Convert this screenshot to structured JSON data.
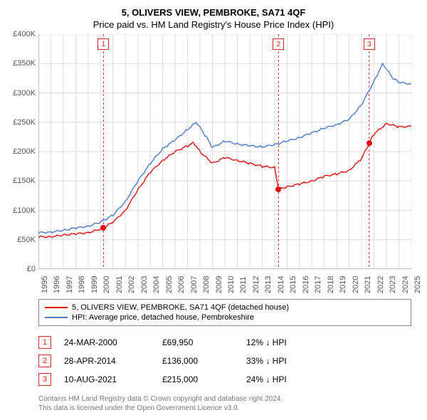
{
  "title": "5, OLIVERS VIEW, PEMBROKE, SA71 4QF",
  "subtitle": "Price paid vs. HM Land Registry's House Price Index (HPI)",
  "chart": {
    "type": "line",
    "x_start_year": 1995,
    "x_end_year": 2025,
    "xticks": [
      1995,
      1996,
      1997,
      1998,
      1999,
      2000,
      2001,
      2002,
      2003,
      2004,
      2005,
      2006,
      2007,
      2008,
      2009,
      2010,
      2011,
      2012,
      2013,
      2014,
      2015,
      2016,
      2017,
      2018,
      2019,
      2020,
      2021,
      2022,
      2023,
      2024,
      2025
    ],
    "y_min": 0,
    "y_max": 400000,
    "ytick_step": 50000,
    "yticks": [
      "£0",
      "£50K",
      "£100K",
      "£150K",
      "£200K",
      "£250K",
      "£300K",
      "£350K",
      "£400K"
    ],
    "grid_color": "#dddddd",
    "background_color": "#ffffff",
    "axis_fontsize": 11,
    "series": [
      {
        "name": "5, OLIVERS VIEW, PEMBROKE, SA71 4QF (detached house)",
        "color": "#e01010",
        "line_width": 1.4,
        "points": [
          [
            1995.0,
            55000
          ],
          [
            1996.0,
            55000
          ],
          [
            1997.0,
            58000
          ],
          [
            1998.0,
            60000
          ],
          [
            1999.0,
            62000
          ],
          [
            2000.0,
            68000
          ],
          [
            2000.23,
            69950
          ],
          [
            2001.0,
            80000
          ],
          [
            2002.0,
            100000
          ],
          [
            2003.0,
            135000
          ],
          [
            2004.0,
            165000
          ],
          [
            2005.0,
            185000
          ],
          [
            2006.0,
            200000
          ],
          [
            2007.0,
            210000
          ],
          [
            2007.5,
            215000
          ],
          [
            2008.0,
            200000
          ],
          [
            2009.0,
            180000
          ],
          [
            2010.0,
            190000
          ],
          [
            2011.0,
            185000
          ],
          [
            2012.0,
            180000
          ],
          [
            2013.0,
            175000
          ],
          [
            2014.0,
            173000
          ],
          [
            2014.32,
            136000
          ],
          [
            2015.0,
            140000
          ],
          [
            2016.0,
            145000
          ],
          [
            2017.0,
            150000
          ],
          [
            2018.0,
            158000
          ],
          [
            2019.0,
            162000
          ],
          [
            2020.0,
            168000
          ],
          [
            2021.0,
            188000
          ],
          [
            2021.61,
            215000
          ],
          [
            2022.0,
            230000
          ],
          [
            2023.0,
            248000
          ],
          [
            2024.0,
            242000
          ],
          [
            2025.0,
            243000
          ]
        ]
      },
      {
        "name": "HPI: Average price, detached house, Pembrokeshire",
        "color": "#4a7ac8",
        "line_width": 1.4,
        "points": [
          [
            1995.0,
            62000
          ],
          [
            1996.0,
            63000
          ],
          [
            1997.0,
            66000
          ],
          [
            1998.0,
            70000
          ],
          [
            1999.0,
            73000
          ],
          [
            2000.0,
            80000
          ],
          [
            2001.0,
            92000
          ],
          [
            2002.0,
            115000
          ],
          [
            2003.0,
            150000
          ],
          [
            2004.0,
            180000
          ],
          [
            2005.0,
            205000
          ],
          [
            2006.0,
            220000
          ],
          [
            2007.0,
            238000
          ],
          [
            2007.7,
            250000
          ],
          [
            2008.5,
            225000
          ],
          [
            2009.0,
            207000
          ],
          [
            2010.0,
            218000
          ],
          [
            2011.0,
            213000
          ],
          [
            2012.0,
            210000
          ],
          [
            2013.0,
            208000
          ],
          [
            2014.0,
            212000
          ],
          [
            2015.0,
            218000
          ],
          [
            2016.0,
            224000
          ],
          [
            2017.0,
            232000
          ],
          [
            2018.0,
            240000
          ],
          [
            2019.0,
            246000
          ],
          [
            2020.0,
            255000
          ],
          [
            2021.0,
            280000
          ],
          [
            2022.0,
            320000
          ],
          [
            2022.7,
            350000
          ],
          [
            2023.5,
            325000
          ],
          [
            2024.0,
            318000
          ],
          [
            2025.0,
            315000
          ]
        ]
      }
    ],
    "markers": [
      {
        "num": "1",
        "year": 2000.23,
        "value": 69950,
        "color": "#e01010"
      },
      {
        "num": "2",
        "year": 2014.32,
        "value": 136000,
        "color": "#e01010"
      },
      {
        "num": "3",
        "year": 2021.61,
        "value": 215000,
        "color": "#e01010"
      }
    ]
  },
  "legend": {
    "rows": [
      {
        "color": "#e01010",
        "label": "5, OLIVERS VIEW, PEMBROKE, SA71 4QF (detached house)"
      },
      {
        "color": "#4a7ac8",
        "label": "HPI: Average price, detached house, Pembrokeshire"
      }
    ]
  },
  "table": {
    "rows": [
      {
        "num": "1",
        "date": "24-MAR-2000",
        "price": "£69,950",
        "change": "12% ↓ HPI"
      },
      {
        "num": "2",
        "date": "28-APR-2014",
        "price": "£136,000",
        "change": "33% ↓ HPI"
      },
      {
        "num": "3",
        "date": "10-AUG-2021",
        "price": "£215,000",
        "change": "24% ↓ HPI"
      }
    ]
  },
  "attrib": {
    "line1": "Contains HM Land Registry data © Crown copyright and database right 2024.",
    "line2": "This data is licensed under the Open Government Licence v3.0."
  }
}
